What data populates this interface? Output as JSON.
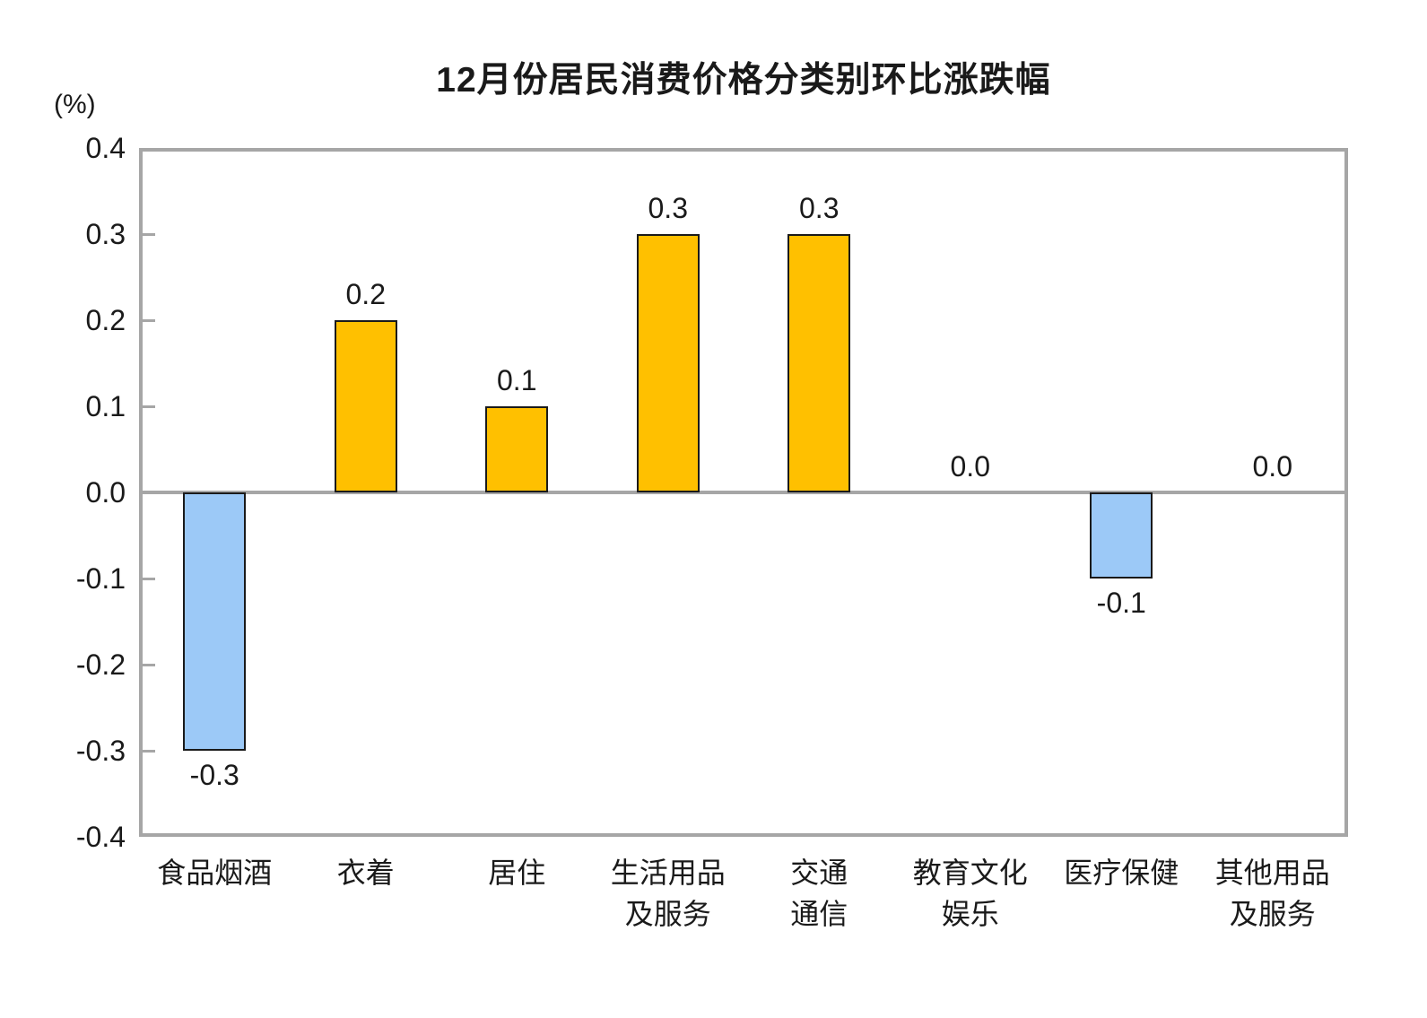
{
  "chart_data": {
    "type": "bar",
    "title": "12月份居民消费价格分类别环比涨跌幅",
    "unit_label": "(%)",
    "categories": [
      [
        "食品烟酒"
      ],
      [
        "衣着"
      ],
      [
        "居住"
      ],
      [
        "生活用品",
        "及服务"
      ],
      [
        "交通",
        "通信"
      ],
      [
        "教育文化",
        "娱乐"
      ],
      [
        "医疗保健"
      ],
      [
        "其他用品",
        "及服务"
      ]
    ],
    "values": [
      -0.3,
      0.2,
      0.1,
      0.3,
      0.3,
      0.0,
      -0.1,
      0.0
    ],
    "data_labels": [
      "-0.3",
      "0.2",
      "0.1",
      "0.3",
      "0.3",
      "0.0",
      "-0.1",
      "0.0"
    ],
    "ylim": [
      -0.4,
      0.4
    ],
    "ytick_labels": [
      "0.4",
      "0.3",
      "0.2",
      "0.1",
      "0.0",
      "-0.1",
      "-0.2",
      "-0.3",
      "-0.4"
    ],
    "xlabel": "",
    "ylabel": "(%)",
    "grid": false,
    "legend": "none",
    "colors": {
      "positive_bar": "#FFC000",
      "negative_bar": "#9CC9F7",
      "bar_border": "#1a1a1a",
      "frame": "#A6A6A6",
      "zero_line": "#A6A6A6",
      "text": "#1a1a1a",
      "background": "#FFFFFF"
    }
  }
}
